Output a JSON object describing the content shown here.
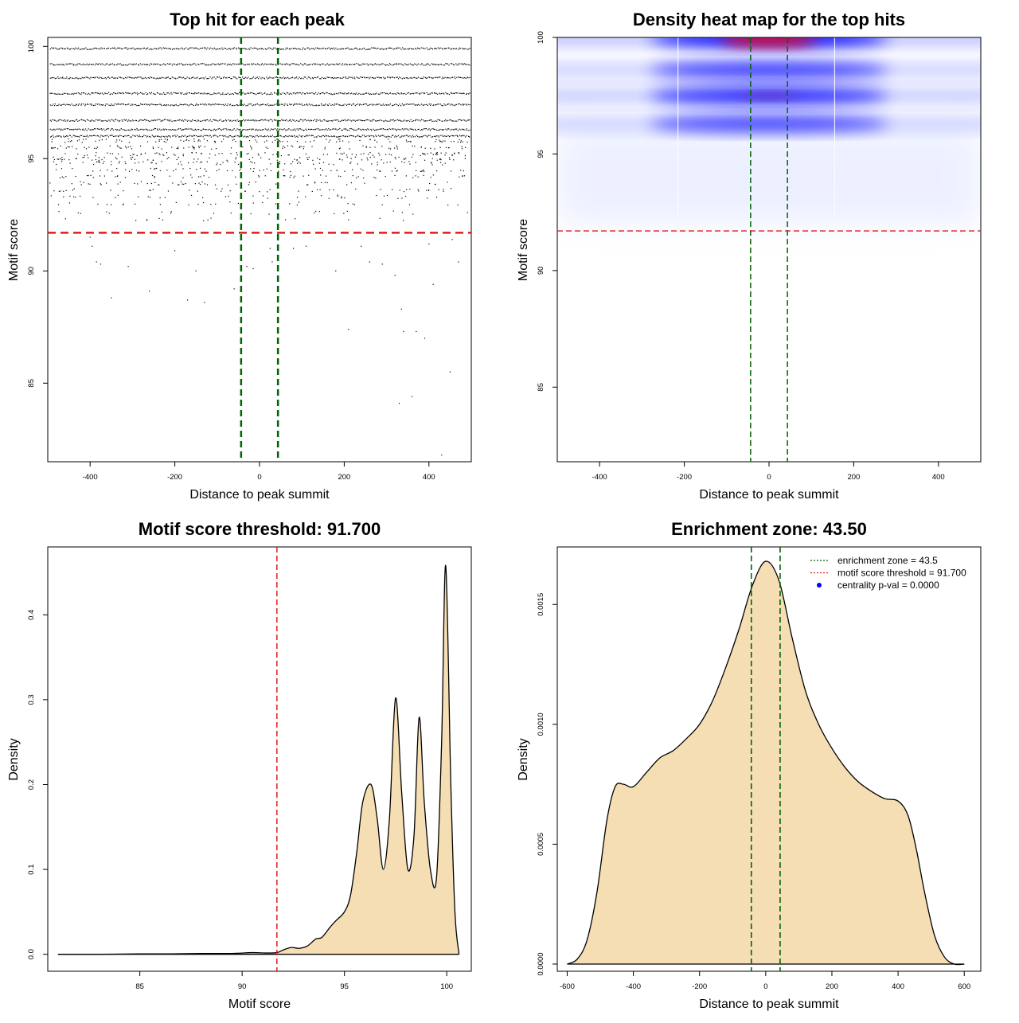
{
  "chart_data": [
    {
      "type": "scatter",
      "title": "Top hit for each peak",
      "xlabel": "Distance to peak summit",
      "ylabel": "Motif score",
      "xlim": [
        -500,
        500
      ],
      "ylim": [
        81.5,
        100.4
      ],
      "xticks": [
        -400,
        -200,
        0,
        200,
        400
      ],
      "yticks": [
        85,
        90,
        95,
        100
      ],
      "vlines": [
        -43.5,
        43.5
      ],
      "vline_color": "#006400",
      "hline": 91.7,
      "hline_color": "#e31a1c",
      "score_bands": [
        99.9,
        99.2,
        98.6,
        97.9,
        97.4,
        96.7,
        96.3,
        96.0
      ],
      "sparse_points": [
        {
          "x": -400,
          "y": 91.5
        },
        {
          "x": -395,
          "y": 91.1
        },
        {
          "x": -385,
          "y": 90.4
        },
        {
          "x": -375,
          "y": 90.3
        },
        {
          "x": -350,
          "y": 88.8
        },
        {
          "x": -310,
          "y": 90.2
        },
        {
          "x": -260,
          "y": 89.1
        },
        {
          "x": -200,
          "y": 90.9
        },
        {
          "x": -170,
          "y": 88.7
        },
        {
          "x": -150,
          "y": 90.0
        },
        {
          "x": -130,
          "y": 88.6
        },
        {
          "x": -60,
          "y": 89.2
        },
        {
          "x": -30,
          "y": 90.2
        },
        {
          "x": -15,
          "y": 90.1
        },
        {
          "x": 25,
          "y": 91.0
        },
        {
          "x": 80,
          "y": 91.0
        },
        {
          "x": 110,
          "y": 91.1
        },
        {
          "x": 180,
          "y": 90.0
        },
        {
          "x": 210,
          "y": 87.4
        },
        {
          "x": 240,
          "y": 91.1
        },
        {
          "x": 260,
          "y": 90.4
        },
        {
          "x": 290,
          "y": 90.3
        },
        {
          "x": 320,
          "y": 89.8
        },
        {
          "x": 335,
          "y": 88.3
        },
        {
          "x": 340,
          "y": 87.3
        },
        {
          "x": 360,
          "y": 84.4
        },
        {
          "x": 370,
          "y": 87.3
        },
        {
          "x": 390,
          "y": 87.0
        },
        {
          "x": 400,
          "y": 91.2
        },
        {
          "x": 410,
          "y": 89.4
        },
        {
          "x": 450,
          "y": 85.5
        },
        {
          "x": 455,
          "y": 91.4
        },
        {
          "x": 470,
          "y": 90.4
        },
        {
          "x": 330,
          "y": 84.1
        },
        {
          "x": 430,
          "y": 81.8
        },
        {
          "x": 30,
          "y": 90.4
        }
      ]
    },
    {
      "type": "heatmap",
      "title": "Density heat map for the top hits",
      "xlabel": "Distance to peak summit",
      "ylabel": "Motif score",
      "xlim": [
        -500,
        500
      ],
      "ylim": [
        81.8,
        100
      ],
      "xticks": [
        -400,
        -200,
        0,
        200,
        400
      ],
      "yticks": [
        85,
        90,
        95,
        100
      ],
      "vlines": [
        -43.5,
        43.5
      ],
      "hline": 91.7,
      "bands": [
        {
          "y": 99.95,
          "intensity": 1.0
        },
        {
          "y": 98.6,
          "intensity": 0.75
        },
        {
          "y": 97.5,
          "intensity": 0.85
        },
        {
          "y": 96.3,
          "intensity": 0.7
        }
      ],
      "low_color": "#ffffff",
      "mid_color": "#0000ff",
      "high_color": "#ff0000"
    },
    {
      "type": "area",
      "title": "Motif score threshold: 91.700",
      "xlabel": "Motif score",
      "ylabel": "Density",
      "xlim": [
        80.5,
        101.2
      ],
      "ylim": [
        -0.02,
        0.48
      ],
      "xticks": [
        85,
        90,
        95,
        100
      ],
      "yticks": [
        0.0,
        0.1,
        0.2,
        0.3,
        0.4
      ],
      "vline": 91.7,
      "vline_color": "#e31a1c",
      "fill": "#f5deb3",
      "x": [
        81.0,
        83.0,
        85.0,
        86.5,
        88.0,
        89.5,
        90.5,
        91.2,
        91.7,
        92.0,
        92.4,
        92.8,
        93.2,
        93.6,
        93.9,
        94.3,
        94.6,
        95.0,
        95.3,
        95.6,
        95.9,
        96.3,
        96.6,
        96.9,
        97.2,
        97.5,
        97.8,
        98.1,
        98.4,
        98.65,
        98.9,
        99.2,
        99.5,
        99.75,
        99.95,
        100.2,
        100.4,
        100.6
      ],
      "y": [
        0.0,
        0.0,
        0.0005,
        0.0005,
        0.001,
        0.001,
        0.002,
        0.0015,
        0.002,
        0.005,
        0.008,
        0.007,
        0.01,
        0.018,
        0.02,
        0.032,
        0.04,
        0.05,
        0.07,
        0.12,
        0.18,
        0.2,
        0.16,
        0.1,
        0.16,
        0.302,
        0.19,
        0.1,
        0.14,
        0.279,
        0.18,
        0.1,
        0.09,
        0.25,
        0.458,
        0.2,
        0.05,
        0.0
      ]
    },
    {
      "type": "area",
      "title": "Enrichment zone: 43.50",
      "xlabel": "Distance to peak summit",
      "ylabel": "Density",
      "xlim": [
        -630,
        650
      ],
      "ylim": [
        -3e-05,
        0.00174
      ],
      "xticks": [
        -600,
        -400,
        -200,
        0,
        200,
        400,
        600
      ],
      "yticks": [
        "0.0000",
        "0.0005",
        "0.0010",
        "0.0015"
      ],
      "vlines": [
        -43.5,
        43.5
      ],
      "vline_color": "#006400",
      "fill": "#f5deb3",
      "legend": {
        "position": "top-right",
        "entries": [
          {
            "label": "enrichment zone = 43.5",
            "color": "#006400",
            "style": "dotted-line"
          },
          {
            "label": "motif score threshold = 91.700",
            "color": "#e31a1c",
            "style": "dotted-line"
          },
          {
            "label": "centrality p-val = 0.0000",
            "color": "#0000ff",
            "style": "point"
          }
        ]
      },
      "x": [
        -600,
        -570,
        -540,
        -510,
        -480,
        -455,
        -430,
        -400,
        -360,
        -320,
        -280,
        -240,
        -200,
        -160,
        -120,
        -80,
        -40,
        0,
        40,
        80,
        120,
        160,
        200,
        240,
        280,
        320,
        360,
        400,
        430,
        455,
        480,
        510,
        540,
        570,
        600
      ],
      "y": [
        0.0,
        2e-05,
        0.0001,
        0.0003,
        0.0006,
        0.00074,
        0.00075,
        0.00074,
        0.0008,
        0.00086,
        0.00089,
        0.00094,
        0.001,
        0.0011,
        0.00124,
        0.0014,
        0.00158,
        0.00168,
        0.0016,
        0.00136,
        0.00114,
        0.001,
        0.0009,
        0.00082,
        0.00076,
        0.00072,
        0.00069,
        0.00068,
        0.00062,
        0.00048,
        0.0003,
        0.00012,
        3e-05,
        0.0,
        0.0
      ]
    }
  ]
}
